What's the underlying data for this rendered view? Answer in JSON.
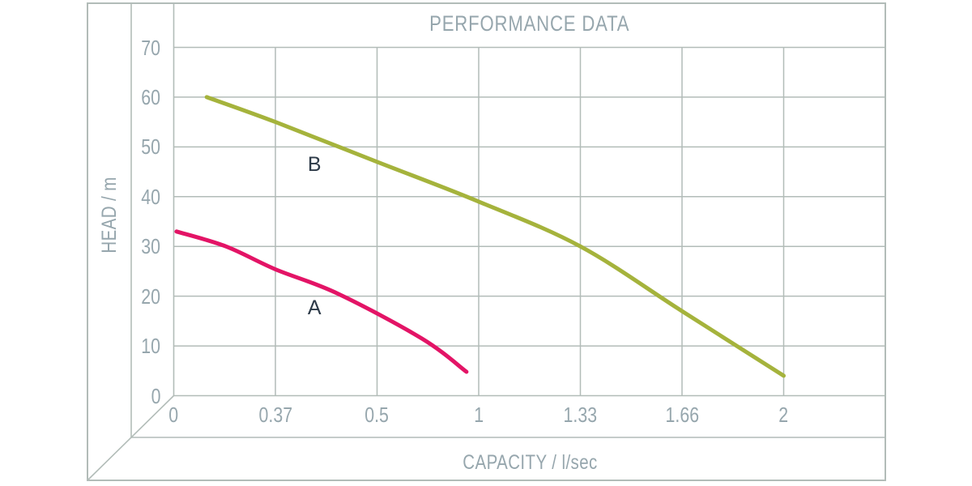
{
  "figure": {
    "title": "PERFORMANCE DATA",
    "x_axis_label": "CAPACITY / l/sec",
    "y_axis_label": "HEAD / m"
  },
  "colors": {
    "background": "#ffffff",
    "grid": "#b2bcb8",
    "tick_text": "#96a6ad",
    "curve_label_text": "#2d3a48",
    "series_a": "#e31466",
    "series_b": "#a5b33c"
  },
  "chart_data": {
    "type": "line",
    "title": "PERFORMANCE DATA",
    "xlabel": "CAPACITY / l/sec",
    "ylabel": "HEAD / m",
    "x_tick_labels": [
      "0",
      "0.37",
      "0.5",
      "1",
      "1.33",
      "1.66",
      "2"
    ],
    "x_tick_values": [
      0,
      0.37,
      0.5,
      1,
      1.33,
      1.66,
      2
    ],
    "x_scale_note": "non-linear scale: tick labels are evenly spaced",
    "y_tick_labels": [
      "70",
      "60",
      "50",
      "40",
      "30",
      "20",
      "10",
      "0"
    ],
    "y_tick_values": [
      70,
      60,
      50,
      40,
      30,
      20,
      10,
      0
    ],
    "ylim": [
      0,
      70
    ],
    "grid": true,
    "legend": "inline curve labels",
    "series": [
      {
        "name": "A",
        "color": "#e31466",
        "points": [
          {
            "x": 0.01,
            "head": 33
          },
          {
            "x": 0.19,
            "head": 30
          },
          {
            "x": 0.37,
            "head": 25.4
          },
          {
            "x": 0.45,
            "head": 20.5
          },
          {
            "x": 0.72,
            "head": 11.5
          },
          {
            "x": 0.94,
            "head": 4.8
          }
        ]
      },
      {
        "name": "B",
        "color": "#a5b33c",
        "points": [
          {
            "x": 0.12,
            "head": 60
          },
          {
            "x": 0.37,
            "head": 55
          },
          {
            "x": 0.5,
            "head": 47
          },
          {
            "x": 1,
            "head": 39
          },
          {
            "x": 1.33,
            "head": 30
          },
          {
            "x": 1.66,
            "head": 17
          },
          {
            "x": 2,
            "head": 4
          }
        ]
      }
    ],
    "series_labels": [
      {
        "text": "A",
        "x": 0.42,
        "head": 17.7
      },
      {
        "text": "B",
        "x": 0.42,
        "head": 46.5
      }
    ]
  }
}
